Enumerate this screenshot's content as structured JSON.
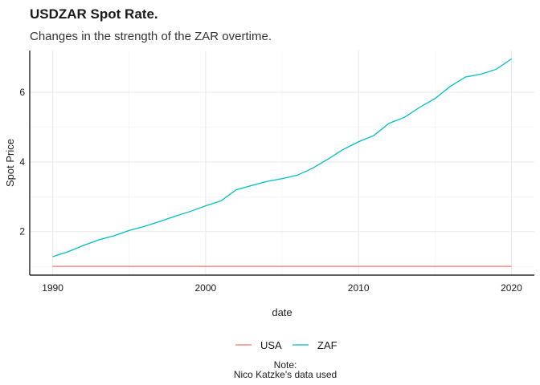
{
  "chart_data": {
    "type": "line",
    "title": "USDZAR Spot Rate.",
    "subtitle": "Changes in the strength of the ZAR overtime.",
    "xlabel": "date",
    "ylabel": "Spot Price",
    "xlim": [
      1988.5,
      2021.5
    ],
    "ylim": [
      0.75,
      7.2
    ],
    "x_ticks": [
      1990,
      2000,
      2010,
      2020
    ],
    "x_tick_labels": [
      "1990",
      "2000",
      "2010",
      "2020"
    ],
    "y_ticks": [
      2,
      4,
      6
    ],
    "y_tick_labels": [
      "2",
      "4",
      "6"
    ],
    "grid": true,
    "legend_position": "bottom",
    "x": [
      1990,
      1991,
      1992,
      1993,
      1994,
      1995,
      1996,
      1997,
      1998,
      1999,
      2000,
      2001,
      2002,
      2003,
      2004,
      2005,
      2006,
      2007,
      2008,
      2009,
      2010,
      2011,
      2012,
      2013,
      2014,
      2015,
      2016,
      2017,
      2018,
      2019,
      2020
    ],
    "series": [
      {
        "name": "USA",
        "color": "#F8766D",
        "values": [
          1,
          1,
          1,
          1,
          1,
          1,
          1,
          1,
          1,
          1,
          1,
          1,
          1,
          1,
          1,
          1,
          1,
          1,
          1,
          1,
          1,
          1,
          1,
          1,
          1,
          1,
          1,
          1,
          1,
          1,
          1
        ]
      },
      {
        "name": "ZAF",
        "color": "#00BFC4",
        "values": [
          1.28,
          1.42,
          1.6,
          1.76,
          1.88,
          2.03,
          2.15,
          2.29,
          2.44,
          2.58,
          2.74,
          2.88,
          3.2,
          3.32,
          3.44,
          3.52,
          3.62,
          3.82,
          4.08,
          4.36,
          4.58,
          4.76,
          5.11,
          5.28,
          5.57,
          5.82,
          6.17,
          6.44,
          6.52,
          6.66,
          6.96
        ]
      }
    ]
  },
  "caption": {
    "line1": "Note:",
    "line2": "Nico Katzke's data used"
  }
}
